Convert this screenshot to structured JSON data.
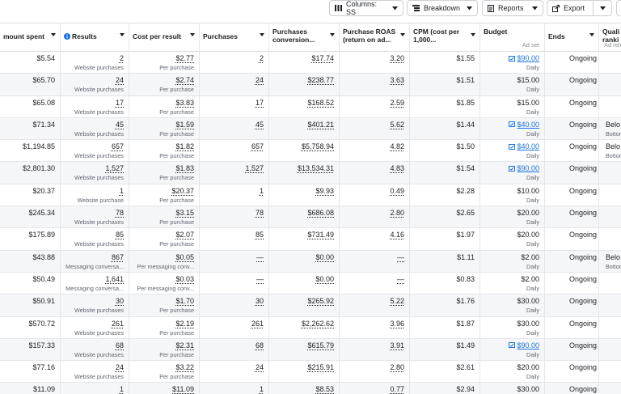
{
  "toolbar": {
    "columns_label": "Columns: SS",
    "breakdown_label": "Breakdown",
    "reports_label": "Reports",
    "export_label": "Export"
  },
  "columns": {
    "amount": "mount spent",
    "results": "Results",
    "cost_per_result": "Cost per result",
    "purchases": "Purchases",
    "conversion": "Purchases conversion...",
    "roas": "Purchase ROAS (return on ad...",
    "cpm": "CPM (cost per 1,000...",
    "budget": "Budget",
    "budget_sub": "Ad set",
    "ends": "Ends",
    "quality": "Quali ranki",
    "quality_sub": "Ad rele"
  },
  "colors": {
    "link": "#1b74e4",
    "info_icon": "#1b74e4",
    "row_alt": "#f5f6f7",
    "border": "#e4e6eb"
  },
  "rows": [
    {
      "amount": "$5.54",
      "results": "2",
      "results_sub": "Website purchases",
      "cpr": "$2.77",
      "cpr_sub": "Per purchase",
      "purchases": "2",
      "conv": "$17.74",
      "roas": "3.20",
      "cpm": "$1.55",
      "budget": "$90.00",
      "budget_sub": "Daily",
      "budget_link": true,
      "ends": "Ongoing",
      "quality": "",
      "quality_sub": ""
    },
    {
      "amount": "$65.70",
      "results": "24",
      "results_sub": "Website purchases",
      "cpr": "$2.74",
      "cpr_sub": "Per purchase",
      "purchases": "24",
      "conv": "$238.77",
      "roas": "3.63",
      "cpm": "$1.51",
      "budget": "$15.00",
      "budget_sub": "Daily",
      "budget_link": false,
      "ends": "Ongoing",
      "quality": "",
      "quality_sub": ""
    },
    {
      "amount": "$65.08",
      "results": "17",
      "results_sub": "Website purchases",
      "cpr": "$3.83",
      "cpr_sub": "Per purchase",
      "purchases": "17",
      "conv": "$168.52",
      "roas": "2.59",
      "cpm": "$1.85",
      "budget": "$15.00",
      "budget_sub": "Daily",
      "budget_link": false,
      "ends": "Ongoing",
      "quality": "",
      "quality_sub": ""
    },
    {
      "amount": "$71.34",
      "results": "45",
      "results_sub": "Website purchases",
      "cpr": "$1.59",
      "cpr_sub": "Per purchase",
      "purchases": "45",
      "conv": "$401.21",
      "roas": "5.62",
      "cpm": "$1.44",
      "budget": "$40.00",
      "budget_sub": "Daily",
      "budget_link": true,
      "ends": "Ongoing",
      "quality": "Belo",
      "quality_sub": "Botton"
    },
    {
      "amount": "$1,194.85",
      "results": "657",
      "results_sub": "Website purchases",
      "cpr": "$1.82",
      "cpr_sub": "Per purchase",
      "purchases": "657",
      "conv": "$5,758.94",
      "roas": "4.82",
      "cpm": "$1.50",
      "budget": "$40.00",
      "budget_sub": "Daily",
      "budget_link": true,
      "ends": "Ongoing",
      "quality": "Belo",
      "quality_sub": "Botton"
    },
    {
      "amount": "$2,801.30",
      "results": "1,527",
      "results_sub": "Website purchases",
      "cpr": "$1.83",
      "cpr_sub": "Per purchase",
      "purchases": "1,527",
      "conv": "$13,534.31",
      "roas": "4.83",
      "cpm": "$1.54",
      "budget": "$90.00",
      "budget_sub": "Daily",
      "budget_link": true,
      "ends": "Ongoing",
      "quality": "",
      "quality_sub": ""
    },
    {
      "amount": "$20.37",
      "results": "1",
      "results_sub": "Website purchase",
      "cpr": "$20.37",
      "cpr_sub": "Per purchase",
      "purchases": "1",
      "conv": "$9.93",
      "roas": "0.49",
      "cpm": "$2.28",
      "budget": "$10.00",
      "budget_sub": "Daily",
      "budget_link": false,
      "ends": "Ongoing",
      "quality": "",
      "quality_sub": ""
    },
    {
      "amount": "$245.34",
      "results": "78",
      "results_sub": "Website purchases",
      "cpr": "$3.15",
      "cpr_sub": "Per purchase",
      "purchases": "78",
      "conv": "$686.08",
      "roas": "2.80",
      "cpm": "$2.65",
      "budget": "$20.00",
      "budget_sub": "Daily",
      "budget_link": false,
      "ends": "Ongoing",
      "quality": "",
      "quality_sub": ""
    },
    {
      "amount": "$175.89",
      "results": "85",
      "results_sub": "Website purchases",
      "cpr": "$2.07",
      "cpr_sub": "Per purchase",
      "purchases": "85",
      "conv": "$731.49",
      "roas": "4.16",
      "cpm": "$1.97",
      "budget": "$20.00",
      "budget_sub": "Daily",
      "budget_link": false,
      "ends": "Ongoing",
      "quality": "",
      "quality_sub": ""
    },
    {
      "amount": "$43.88",
      "results": "867",
      "results_sub": "Messaging conversa...",
      "cpr": "$0.05",
      "cpr_sub": "Per messaging conv...",
      "purchases": "—",
      "conv": "$0.00",
      "roas": "—",
      "cpm": "$1.11",
      "budget": "$2.00",
      "budget_sub": "Daily",
      "budget_link": false,
      "ends": "Ongoing",
      "quality": "Belo",
      "quality_sub": "Botton"
    },
    {
      "amount": "$50.49",
      "results": "1,641",
      "results_sub": "Messaging conversa...",
      "cpr": "$0.03",
      "cpr_sub": "Per messaging conv...",
      "purchases": "—",
      "conv": "$0.00",
      "roas": "—",
      "cpm": "$0.83",
      "budget": "$2.00",
      "budget_sub": "Daily",
      "budget_link": false,
      "ends": "Ongoing",
      "quality": "",
      "quality_sub": ""
    },
    {
      "amount": "$50.91",
      "results": "30",
      "results_sub": "Website purchases",
      "cpr": "$1.70",
      "cpr_sub": "Per purchase",
      "purchases": "30",
      "conv": "$265.92",
      "roas": "5.22",
      "cpm": "$1.76",
      "budget": "$30.00",
      "budget_sub": "Daily",
      "budget_link": false,
      "ends": "Ongoing",
      "quality": "",
      "quality_sub": ""
    },
    {
      "amount": "$570.72",
      "results": "261",
      "results_sub": "Website purchases",
      "cpr": "$2.19",
      "cpr_sub": "Per purchase",
      "purchases": "261",
      "conv": "$2,262.62",
      "roas": "3.96",
      "cpm": "$1.87",
      "budget": "$30.00",
      "budget_sub": "Daily",
      "budget_link": false,
      "ends": "Ongoing",
      "quality": "",
      "quality_sub": ""
    },
    {
      "amount": "$157.33",
      "results": "68",
      "results_sub": "Website purchases",
      "cpr": "$2.31",
      "cpr_sub": "Per purchase",
      "purchases": "68",
      "conv": "$615.79",
      "roas": "3.91",
      "cpm": "$1.49",
      "budget": "$90.00",
      "budget_sub": "Daily",
      "budget_link": true,
      "ends": "Ongoing",
      "quality": "",
      "quality_sub": ""
    },
    {
      "amount": "$77.16",
      "results": "24",
      "results_sub": "Website purchases",
      "cpr": "$3.22",
      "cpr_sub": "Per purchase",
      "purchases": "24",
      "conv": "$215.91",
      "roas": "2.80",
      "cpm": "$2.61",
      "budget": "$20.00",
      "budget_sub": "Daily",
      "budget_link": false,
      "ends": "Ongoing",
      "quality": "",
      "quality_sub": ""
    },
    {
      "amount": "$11.09",
      "results": "1",
      "results_sub": "",
      "cpr": "$11.09",
      "cpr_sub": "",
      "purchases": "1",
      "conv": "$8.53",
      "roas": "0.77",
      "cpm": "$2.94",
      "budget": "$30.00",
      "budget_sub": "",
      "budget_link": false,
      "ends": "Ongoing",
      "quality": "",
      "quality_sub": ""
    }
  ]
}
